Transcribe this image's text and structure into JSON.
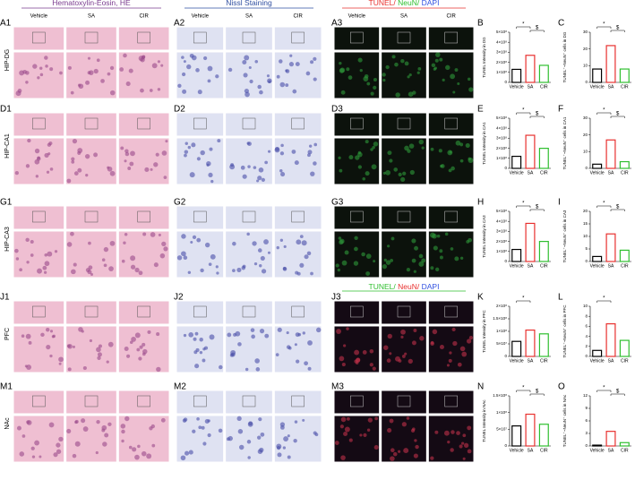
{
  "headers": [
    {
      "title_parts": [
        "Hematoxylin-Eosin, HE"
      ],
      "conditions": [
        "Vehicle",
        "SA",
        "CIR"
      ]
    },
    {
      "title_parts": [
        "Nissl Staining"
      ],
      "conditions": [
        "Vehicle",
        "SA",
        "CIR"
      ]
    },
    {
      "title_parts": [
        "TUNEL/ ",
        "NeuN/ ",
        "DAPI"
      ],
      "conditions": [
        "Vehicle",
        "SA",
        "CIR"
      ]
    }
  ],
  "lower_header": {
    "title_parts": [
      "TUNEL/ ",
      "NeuN/ ",
      "DAPI"
    ]
  },
  "rows": [
    {
      "label": "HIP-DG",
      "panels": [
        "A1",
        "A2",
        "A3"
      ]
    },
    {
      "label": "HIP-CA1",
      "panels": [
        "D1",
        "D2",
        "D3"
      ]
    },
    {
      "label": "HIP-CA3",
      "panels": [
        "G1",
        "G2",
        "G3"
      ]
    },
    {
      "label": "PFC",
      "panels": [
        "J1",
        "J2",
        "J3"
      ]
    },
    {
      "label": "NAc",
      "panels": [
        "M1",
        "M2",
        "M3"
      ]
    }
  ],
  "chart_data": [
    {
      "type": "bar",
      "label": "B",
      "y_label": "TUNEL Intensity in DG",
      "categories": [
        "Vehicle",
        "SA",
        "CIR"
      ],
      "values": [
        130000000,
        270000000,
        170000000
      ],
      "colors": [
        "#000000",
        "#e8312f",
        "#2fbf2f"
      ],
      "ylim": [
        0,
        500000000
      ],
      "yticks": [
        0,
        {
          "value": 100000000,
          "label": "1×10⁸"
        },
        {
          "value": 200000000,
          "label": "2×10⁸"
        },
        {
          "value": 300000000,
          "label": "3×10⁸"
        },
        {
          "value": 400000000,
          "label": "4×10⁸"
        },
        {
          "value": 500000000,
          "label": "5×10⁸"
        }
      ],
      "annotations": [
        "*",
        "$"
      ]
    },
    {
      "type": "bar",
      "label": "C",
      "y_label": "TUNEL⁺~NeuN⁺ cells in DG",
      "categories": [
        "Vehicle",
        "SA",
        "CIR"
      ],
      "values": [
        8,
        22,
        8
      ],
      "colors": [
        "#000000",
        "#e8312f",
        "#2fbf2f"
      ],
      "ylim": [
        0,
        30
      ],
      "yticks": [
        0,
        10,
        20,
        30
      ],
      "annotations": [
        "*",
        "$"
      ]
    },
    {
      "type": "bar",
      "label": "E",
      "y_label": "TUNEL Intensity in CA1",
      "categories": [
        "Vehicle",
        "SA",
        "CIR"
      ],
      "values": [
        120000000,
        330000000,
        200000000
      ],
      "colors": [
        "#000000",
        "#e8312f",
        "#2fbf2f"
      ],
      "ylim": [
        0,
        500000000
      ],
      "yticks": [
        0,
        {
          "value": 100000000,
          "label": "1×10⁸"
        },
        {
          "value": 200000000,
          "label": "2×10⁸"
        },
        {
          "value": 300000000,
          "label": "3×10⁸"
        },
        {
          "value": 400000000,
          "label": "4×10⁸"
        },
        {
          "value": 500000000,
          "label": "5×10⁸"
        }
      ],
      "annotations": [
        "*",
        "$"
      ]
    },
    {
      "type": "bar",
      "label": "F",
      "y_label": "TUNEL⁺~NeuN⁺ cells in CA1",
      "categories": [
        "Vehicle",
        "SA",
        "CIR"
      ],
      "values": [
        2.5,
        17,
        4
      ],
      "colors": [
        "#000000",
        "#e8312f",
        "#2fbf2f"
      ],
      "ylim": [
        0,
        30
      ],
      "yticks": [
        0,
        10,
        20,
        30
      ],
      "annotations": [
        "*",
        "$"
      ]
    },
    {
      "type": "bar",
      "label": "H",
      "y_label": "TUNEL Intensity in CA3",
      "categories": [
        "Vehicle",
        "SA",
        "CIR"
      ],
      "values": [
        120000000,
        380000000,
        200000000
      ],
      "colors": [
        "#000000",
        "#e8312f",
        "#2fbf2f"
      ],
      "ylim": [
        0,
        500000000
      ],
      "yticks": [
        0,
        {
          "value": 100000000,
          "label": "1×10⁸"
        },
        {
          "value": 200000000,
          "label": "2×10⁸"
        },
        {
          "value": 300000000,
          "label": "3×10⁸"
        },
        {
          "value": 400000000,
          "label": "4×10⁸"
        },
        {
          "value": 500000000,
          "label": "5×10⁸"
        }
      ],
      "annotations": [
        "*",
        "$"
      ]
    },
    {
      "type": "bar",
      "label": "I",
      "y_label": "TUNEL⁺~NeuN⁺ cells in CA3",
      "categories": [
        "Vehicle",
        "SA",
        "CIR"
      ],
      "values": [
        2,
        11,
        4.5
      ],
      "colors": [
        "#000000",
        "#e8312f",
        "#2fbf2f"
      ],
      "ylim": [
        0,
        20
      ],
      "yticks": [
        0,
        5,
        10,
        15,
        20
      ],
      "annotations": [
        "*",
        "$"
      ]
    },
    {
      "type": "bar",
      "label": "K",
      "y_label": "TUNEL Intensity in PFC",
      "categories": [
        "Vehicle",
        "SA",
        "CIR"
      ],
      "values": [
        60000000,
        105000000,
        90000000
      ],
      "colors": [
        "#000000",
        "#e8312f",
        "#2fbf2f"
      ],
      "ylim": [
        0,
        200000000
      ],
      "yticks": [
        0,
        {
          "value": 50000000,
          "label": "5×10⁷"
        },
        {
          "value": 100000000,
          "label": "1×10⁸"
        },
        {
          "value": 150000000,
          "label": "1.5×10⁸"
        },
        {
          "value": 200000000,
          "label": "2×10⁸"
        }
      ],
      "annotations": [
        "*"
      ]
    },
    {
      "type": "bar",
      "label": "L",
      "y_label": "TUNEL⁺~NeuN⁺ cells in PFC",
      "categories": [
        "Vehicle",
        "SA",
        "CIR"
      ],
      "values": [
        1.2,
        6.5,
        3.2
      ],
      "colors": [
        "#000000",
        "#e8312f",
        "#2fbf2f"
      ],
      "ylim": [
        0,
        10
      ],
      "yticks": [
        0,
        2,
        4,
        6,
        8,
        10
      ],
      "annotations": [
        "*"
      ]
    },
    {
      "type": "bar",
      "label": "N",
      "y_label": "TUNEL Intensity in NAc",
      "categories": [
        "Vehicle",
        "SA",
        "CIR"
      ],
      "values": [
        60000000,
        95000000,
        65000000
      ],
      "colors": [
        "#000000",
        "#e8312f",
        "#2fbf2f"
      ],
      "ylim": [
        0,
        150000000
      ],
      "yticks": [
        0,
        {
          "value": 50000000,
          "label": "5×10⁷"
        },
        {
          "value": 100000000,
          "label": "1×10⁸"
        },
        {
          "value": 150000000,
          "label": "1.5×10⁸"
        }
      ],
      "annotations": [
        "*",
        "$"
      ]
    },
    {
      "type": "bar",
      "label": "O",
      "y_label": "TUNEL⁺~NeuN⁺ cells in NAc",
      "categories": [
        "Vehicle",
        "SA",
        "CIR"
      ],
      "values": [
        0.2,
        3.5,
        0.8
      ],
      "colors": [
        "#000000",
        "#e8312f",
        "#2fbf2f"
      ],
      "ylim": [
        0,
        12
      ],
      "yticks": [
        0,
        3,
        6,
        9,
        12
      ],
      "annotations": [
        "*",
        "$"
      ]
    }
  ]
}
